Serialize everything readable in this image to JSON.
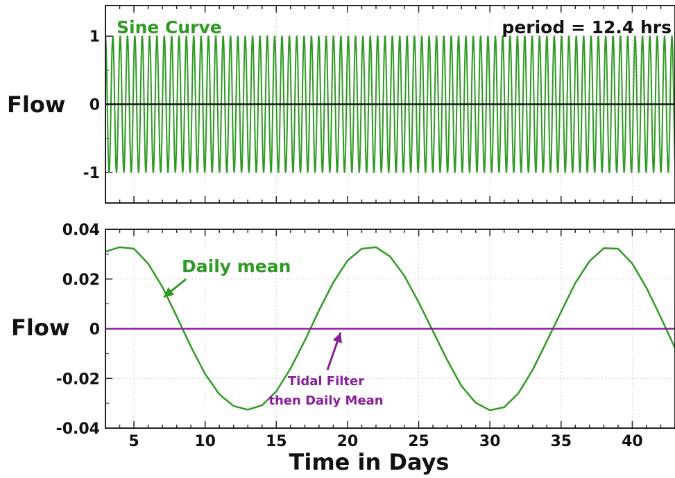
{
  "colors": {
    "green": "#2e9a22",
    "purple": "#8a1d9a",
    "black": "#111111",
    "grid": "#cfcfcf"
  },
  "chart_data": [
    {
      "type": "line",
      "title": "",
      "ylabel": "Flow",
      "xlim": [
        3,
        43
      ],
      "ylim": [
        -1.45,
        1.45
      ],
      "yticks": [
        -1,
        0,
        1
      ],
      "ytick_labels": [
        "-1",
        "0",
        "1"
      ],
      "grid": true,
      "annotations": {
        "left": "Sine Curve",
        "right": "period = 12.4 hrs"
      },
      "series": [
        {
          "name": "Sine Curve",
          "color": "green",
          "function": "sine",
          "amplitude": 1,
          "period_days": 0.516667,
          "x_range": [
            3,
            43
          ]
        },
        {
          "name": "",
          "color": "black",
          "function": "constant",
          "value": 0,
          "x_range": [
            3,
            43
          ]
        }
      ]
    },
    {
      "type": "line",
      "title": "",
      "xlabel": "Time in Days",
      "ylabel": "Flow",
      "xlim": [
        3,
        43
      ],
      "ylim": [
        -0.04,
        0.04
      ],
      "xticks": [
        5,
        10,
        15,
        20,
        25,
        30,
        35,
        40
      ],
      "xtick_labels": [
        "5",
        "10",
        "15",
        "20",
        "25",
        "30",
        "35",
        "40"
      ],
      "yticks": [
        -0.04,
        -0.02,
        0,
        0.02,
        0.04
      ],
      "ytick_labels": [
        "-0.04",
        "-0.02",
        "0",
        "0.02",
        "0.04"
      ],
      "grid": true,
      "annotations": {
        "daily_mean": "Daily mean",
        "tidal_line1": "Tidal Filter",
        "tidal_line2": "then Daily Mean"
      },
      "series": [
        {
          "name": "Daily mean",
          "color": "green",
          "x": [
            3,
            4,
            5,
            6,
            7,
            8,
            9,
            10,
            11,
            12,
            13,
            14,
            15,
            16,
            17,
            18,
            19,
            20,
            21,
            22,
            23,
            24,
            25,
            26,
            27,
            28,
            29,
            30,
            31,
            32,
            33,
            34,
            35,
            36,
            37,
            38,
            39,
            40,
            41,
            42,
            43
          ],
          "y": [
            0.031,
            0.0328,
            0.0322,
            0.0262,
            0.0168,
            0.005,
            -0.0072,
            -0.0182,
            -0.0264,
            -0.0311,
            -0.0326,
            -0.0308,
            -0.0252,
            -0.016,
            -0.0048,
            0.0074,
            0.0186,
            0.0274,
            0.0322,
            0.0328,
            0.029,
            0.0212,
            0.0106,
            -0.001,
            -0.0126,
            -0.023,
            -0.0298,
            -0.0328,
            -0.0316,
            -0.026,
            -0.0166,
            -0.005,
            0.0068,
            0.0184,
            0.0272,
            0.0324,
            0.0322,
            0.0262,
            0.0164,
            0.0046,
            -0.0078
          ]
        },
        {
          "name": "Tidal Filter then Daily Mean",
          "color": "purple",
          "x": [
            3,
            43
          ],
          "y": [
            0,
            0
          ]
        }
      ]
    }
  ]
}
